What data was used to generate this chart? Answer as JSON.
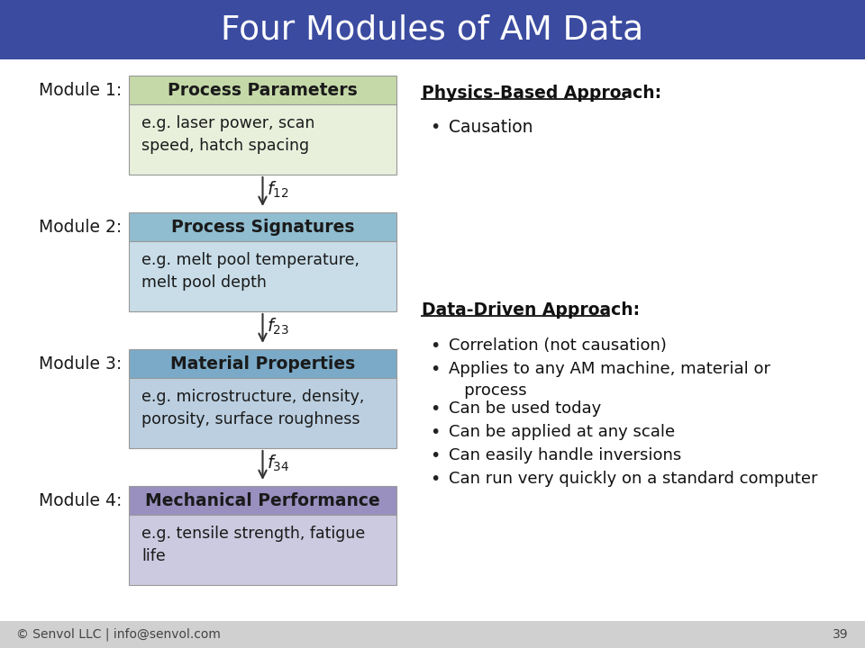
{
  "title": "Four Modules of AM Data",
  "title_bg_color": "#3B4BA0",
  "title_text_color": "#FFFFFF",
  "bg_color": "#FFFFFF",
  "footer_bg_color": "#D0D0D0",
  "footer_text": "© Senvol LLC | info@senvol.com",
  "footer_page": "39",
  "modules": [
    {
      "label": "Module 1:",
      "title": "Process Parameters",
      "body": "e.g. laser power, scan\nspeed, hatch spacing",
      "header_color": "#C5D9A8",
      "body_color": "#E8F0DC"
    },
    {
      "label": "Module 2:",
      "title": "Process Signatures",
      "body": "e.g. melt pool temperature,\nmelt pool depth",
      "header_color": "#90BDD0",
      "body_color": "#C8DDE8"
    },
    {
      "label": "Module 3:",
      "title": "Material Properties",
      "body": "e.g. microstructure, density,\nporosity, surface roughness",
      "header_color": "#7AAAC8",
      "body_color": "#BBCFE0"
    },
    {
      "label": "Module 4:",
      "title": "Mechanical Performance",
      "body": "e.g. tensile strength, fatigue\nlife",
      "header_color": "#9990C0",
      "body_color": "#CCCAE0"
    }
  ],
  "arrows": [
    {
      "sub": "12"
    },
    {
      "sub": "23"
    },
    {
      "sub": "34"
    }
  ],
  "physics_title": "Physics-Based Approach:",
  "physics_bullets": [
    "Causation"
  ],
  "data_title": "Data-Driven Approach:",
  "data_bullets": [
    "Correlation (not causation)",
    "Applies to any AM machine, material or\n   process",
    "Can be used today",
    "Can be applied at any scale",
    "Can easily handle inversions",
    "Can run very quickly on a standard computer"
  ]
}
